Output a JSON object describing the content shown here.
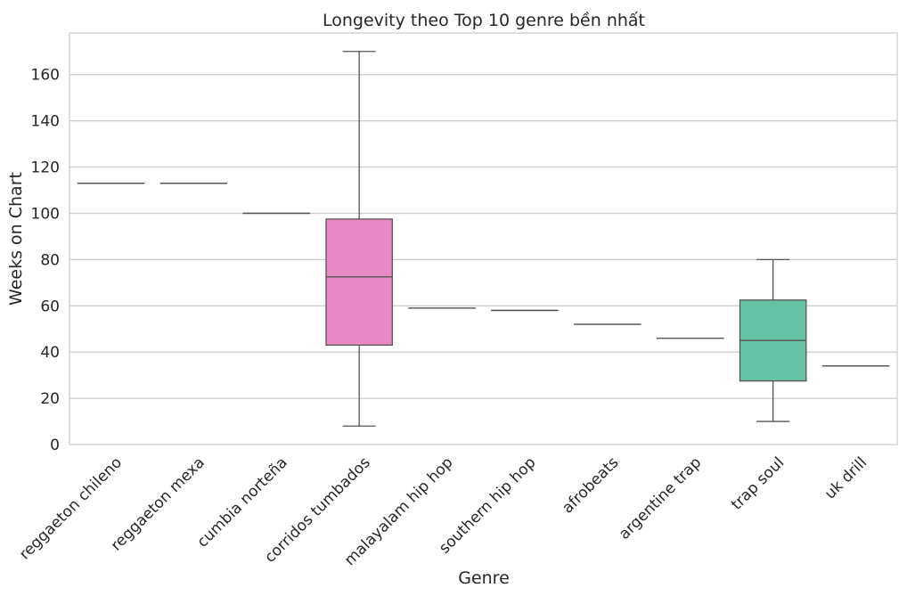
{
  "chart_data": {
    "type": "box",
    "title": "Longevity theo Top 10 genre bền nhất",
    "xlabel": "Genre",
    "ylabel": "Weeks on Chart",
    "ylim": [
      0,
      178
    ],
    "yticks": [
      0,
      20,
      40,
      60,
      80,
      100,
      120,
      140,
      160
    ],
    "grid": "horizontal",
    "categories": [
      "reggaeton chileno",
      "reggaeton mexa",
      "cumbia norteña",
      "corridos tumbados",
      "malayalam hip hop",
      "southern hip hop",
      "afrobeats",
      "argentine trap",
      "trap soul",
      "uk drill"
    ],
    "series": [
      {
        "boxes": [
          {
            "category": "reggaeton chileno",
            "min": 113,
            "q1": 113,
            "median": 113,
            "q3": 113,
            "max": 113,
            "color": "#66c2a5"
          },
          {
            "category": "reggaeton mexa",
            "min": 113,
            "q1": 113,
            "median": 113,
            "q3": 113,
            "max": 113,
            "color": "#fc8d62"
          },
          {
            "category": "cumbia norteña",
            "min": 100,
            "q1": 100,
            "median": 100,
            "q3": 100,
            "max": 100,
            "color": "#8da0cb"
          },
          {
            "category": "corridos tumbados",
            "min": 8,
            "q1": 43,
            "median": 72.5,
            "q3": 97.5,
            "max": 170,
            "color": "#e78ac3"
          },
          {
            "category": "malayalam hip hop",
            "min": 59,
            "q1": 59,
            "median": 59,
            "q3": 59,
            "max": 59,
            "color": "#a6d854"
          },
          {
            "category": "southern hip hop",
            "min": 58,
            "q1": 58,
            "median": 58,
            "q3": 58,
            "max": 58,
            "color": "#ffd92f"
          },
          {
            "category": "afrobeats",
            "min": 52,
            "q1": 52,
            "median": 52,
            "q3": 52,
            "max": 52,
            "color": "#e5c494"
          },
          {
            "category": "argentine trap",
            "min": 46,
            "q1": 46,
            "median": 46,
            "q3": 46,
            "max": 46,
            "color": "#b3b3b3"
          },
          {
            "category": "trap soul",
            "min": 10,
            "q1": 27.5,
            "median": 45,
            "q3": 62.5,
            "max": 80,
            "color": "#66c2a5"
          },
          {
            "category": "uk drill",
            "min": 34,
            "q1": 34,
            "median": 34,
            "q3": 34,
            "max": 34,
            "color": "#fc8d62"
          }
        ]
      }
    ]
  }
}
